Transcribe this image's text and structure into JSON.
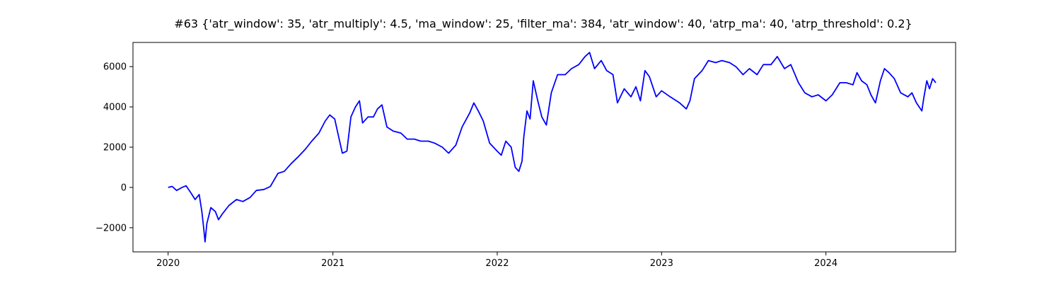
{
  "chart_data": {
    "type": "line",
    "title": "#63 {'atr_window': 35, 'atr_multiply': 4.5, 'ma_window': 25, 'filter_ma': 384, 'atr_window': 40, 'atrp_ma': 40, 'atrp_threshold': 0.2}",
    "xlabel": "",
    "ylabel": "",
    "grid": false,
    "legend": "none",
    "xlim": [
      "2019-10-15",
      "2024-10-15"
    ],
    "ylim": [
      -3200,
      7200
    ],
    "xticks": [
      {
        "value": "2020-01-01",
        "label": "2020"
      },
      {
        "value": "2021-01-01",
        "label": "2021"
      },
      {
        "value": "2022-01-01",
        "label": "2022"
      },
      {
        "value": "2023-01-01",
        "label": "2023"
      },
      {
        "value": "2024-01-01",
        "label": "2024"
      }
    ],
    "yticks": [
      {
        "value": -2000,
        "label": "−2000"
      },
      {
        "value": 0,
        "label": "0"
      },
      {
        "value": 2000,
        "label": "2000"
      },
      {
        "value": 4000,
        "label": "4000"
      },
      {
        "value": 6000,
        "label": "6000"
      }
    ],
    "series": [
      {
        "color": "#0000ff",
        "points": [
          [
            "2020-01-01",
            0
          ],
          [
            "2020-01-10",
            50
          ],
          [
            "2020-01-20",
            -150
          ],
          [
            "2020-02-01",
            0
          ],
          [
            "2020-02-10",
            80
          ],
          [
            "2020-02-20",
            -250
          ],
          [
            "2020-03-01",
            -600
          ],
          [
            "2020-03-10",
            -350
          ],
          [
            "2020-03-16",
            -1200
          ],
          [
            "2020-03-20",
            -2000
          ],
          [
            "2020-03-23",
            -2700
          ],
          [
            "2020-03-27",
            -1800
          ],
          [
            "2020-04-05",
            -1000
          ],
          [
            "2020-04-15",
            -1200
          ],
          [
            "2020-04-22",
            -1600
          ],
          [
            "2020-05-01",
            -1300
          ],
          [
            "2020-05-15",
            -900
          ],
          [
            "2020-06-01",
            -600
          ],
          [
            "2020-06-15",
            -700
          ],
          [
            "2020-07-01",
            -500
          ],
          [
            "2020-07-15",
            -150
          ],
          [
            "2020-08-01",
            -100
          ],
          [
            "2020-08-15",
            50
          ],
          [
            "2020-09-01",
            700
          ],
          [
            "2020-09-15",
            800
          ],
          [
            "2020-10-01",
            1200
          ],
          [
            "2020-10-15",
            1500
          ],
          [
            "2020-11-01",
            1900
          ],
          [
            "2020-11-15",
            2300
          ],
          [
            "2020-12-01",
            2700
          ],
          [
            "2020-12-15",
            3300
          ],
          [
            "2020-12-25",
            3600
          ],
          [
            "2021-01-05",
            3400
          ],
          [
            "2021-01-15",
            2400
          ],
          [
            "2021-01-22",
            1700
          ],
          [
            "2021-02-01",
            1800
          ],
          [
            "2021-02-10",
            3500
          ],
          [
            "2021-02-20",
            4000
          ],
          [
            "2021-03-01",
            4300
          ],
          [
            "2021-03-08",
            3200
          ],
          [
            "2021-03-20",
            3500
          ],
          [
            "2021-04-01",
            3500
          ],
          [
            "2021-04-10",
            3900
          ],
          [
            "2021-04-20",
            4100
          ],
          [
            "2021-05-01",
            3000
          ],
          [
            "2021-05-15",
            2800
          ],
          [
            "2021-06-01",
            2700
          ],
          [
            "2021-06-15",
            2400
          ],
          [
            "2021-07-01",
            2400
          ],
          [
            "2021-07-15",
            2300
          ],
          [
            "2021-08-01",
            2300
          ],
          [
            "2021-08-15",
            2200
          ],
          [
            "2021-09-01",
            2000
          ],
          [
            "2021-09-15",
            1700
          ],
          [
            "2021-10-01",
            2100
          ],
          [
            "2021-10-15",
            3000
          ],
          [
            "2021-11-01",
            3700
          ],
          [
            "2021-11-10",
            4200
          ],
          [
            "2021-11-20",
            3800
          ],
          [
            "2021-12-01",
            3300
          ],
          [
            "2021-12-15",
            2200
          ],
          [
            "2022-01-01",
            1800
          ],
          [
            "2022-01-10",
            1600
          ],
          [
            "2022-01-20",
            2300
          ],
          [
            "2022-02-01",
            2000
          ],
          [
            "2022-02-10",
            1000
          ],
          [
            "2022-02-18",
            800
          ],
          [
            "2022-02-25",
            1300
          ],
          [
            "2022-03-01",
            2500
          ],
          [
            "2022-03-08",
            3800
          ],
          [
            "2022-03-15",
            3400
          ],
          [
            "2022-03-22",
            5300
          ],
          [
            "2022-04-01",
            4300
          ],
          [
            "2022-04-10",
            3500
          ],
          [
            "2022-04-20",
            3100
          ],
          [
            "2022-05-01",
            4700
          ],
          [
            "2022-05-15",
            5600
          ],
          [
            "2022-06-01",
            5600
          ],
          [
            "2022-06-15",
            5900
          ],
          [
            "2022-07-01",
            6100
          ],
          [
            "2022-07-15",
            6500
          ],
          [
            "2022-07-25",
            6700
          ],
          [
            "2022-08-05",
            5900
          ],
          [
            "2022-08-20",
            6300
          ],
          [
            "2022-09-01",
            5800
          ],
          [
            "2022-09-15",
            5600
          ],
          [
            "2022-09-25",
            4200
          ],
          [
            "2022-10-10",
            4900
          ],
          [
            "2022-10-25",
            4500
          ],
          [
            "2022-11-05",
            5000
          ],
          [
            "2022-11-15",
            4300
          ],
          [
            "2022-11-25",
            5800
          ],
          [
            "2022-12-05",
            5500
          ],
          [
            "2022-12-20",
            4500
          ],
          [
            "2023-01-01",
            4800
          ],
          [
            "2023-01-20",
            4500
          ],
          [
            "2023-02-10",
            4200
          ],
          [
            "2023-02-25",
            3900
          ],
          [
            "2023-03-05",
            4300
          ],
          [
            "2023-03-15",
            5400
          ],
          [
            "2023-04-01",
            5800
          ],
          [
            "2023-04-15",
            6300
          ],
          [
            "2023-05-01",
            6200
          ],
          [
            "2023-05-15",
            6300
          ],
          [
            "2023-06-01",
            6200
          ],
          [
            "2023-06-15",
            6000
          ],
          [
            "2023-07-01",
            5600
          ],
          [
            "2023-07-15",
            5900
          ],
          [
            "2023-08-01",
            5600
          ],
          [
            "2023-08-15",
            6100
          ],
          [
            "2023-09-01",
            6100
          ],
          [
            "2023-09-15",
            6500
          ],
          [
            "2023-10-01",
            5900
          ],
          [
            "2023-10-15",
            6100
          ],
          [
            "2023-11-01",
            5200
          ],
          [
            "2023-11-15",
            4700
          ],
          [
            "2023-12-01",
            4500
          ],
          [
            "2023-12-15",
            4600
          ],
          [
            "2024-01-01",
            4300
          ],
          [
            "2024-01-15",
            4600
          ],
          [
            "2024-02-01",
            5200
          ],
          [
            "2024-02-15",
            5200
          ],
          [
            "2024-03-01",
            5100
          ],
          [
            "2024-03-10",
            5700
          ],
          [
            "2024-03-20",
            5300
          ],
          [
            "2024-04-01",
            5100
          ],
          [
            "2024-04-10",
            4600
          ],
          [
            "2024-04-20",
            4200
          ],
          [
            "2024-05-01",
            5300
          ],
          [
            "2024-05-10",
            5900
          ],
          [
            "2024-05-20",
            5700
          ],
          [
            "2024-06-01",
            5400
          ],
          [
            "2024-06-15",
            4700
          ],
          [
            "2024-07-01",
            4500
          ],
          [
            "2024-07-10",
            4700
          ],
          [
            "2024-07-20",
            4200
          ],
          [
            "2024-08-01",
            3800
          ],
          [
            "2024-08-05",
            4400
          ],
          [
            "2024-08-12",
            5300
          ],
          [
            "2024-08-18",
            4900
          ],
          [
            "2024-08-25",
            5400
          ],
          [
            "2024-09-01",
            5200
          ]
        ]
      }
    ]
  }
}
